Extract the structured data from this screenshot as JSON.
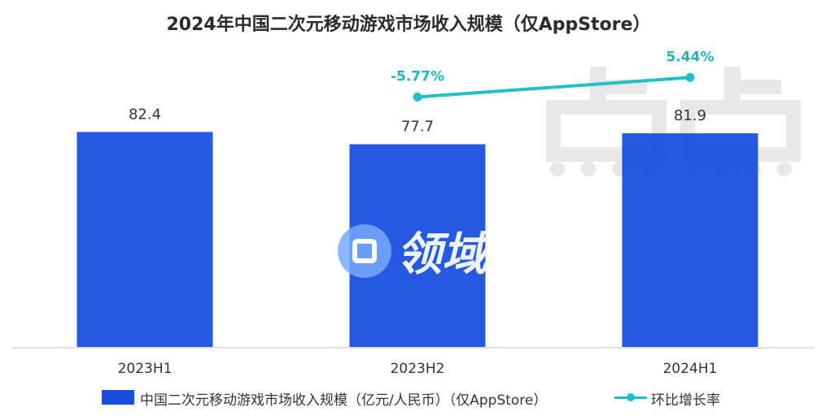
{
  "chart_data": {
    "type": "bar",
    "title": "2024年中国二次元移动游戏市场收入规模（仅AppStore）",
    "categories": [
      "2023H1",
      "2023H2",
      "2024H1"
    ],
    "series": [
      {
        "name": "中国二次元移动游戏市场收入规模（亿元/人民币）（仅AppStore）",
        "type": "bar",
        "values": [
          82.4,
          77.7,
          81.9
        ],
        "labels": [
          "82.4",
          "77.7",
          "81.9"
        ],
        "color": "#1a4fe0"
      },
      {
        "name": "环比增长率",
        "type": "line",
        "values": [
          null,
          -5.77,
          5.44
        ],
        "labels": [
          "",
          "-5.77%",
          "5.44%"
        ],
        "color": "#1fc0c8"
      }
    ],
    "xlabel": "",
    "ylabel": "",
    "ylim": [
      0,
      133
    ],
    "grid": false,
    "legend": "bottom"
  },
  "watermarks": [
    "点点",
    "领域圈"
  ],
  "colors": {
    "bar": "#1a4fe0",
    "line": "#1fc0c8",
    "line_label": "#1fb5c0",
    "axis": "#d9d9d9"
  }
}
